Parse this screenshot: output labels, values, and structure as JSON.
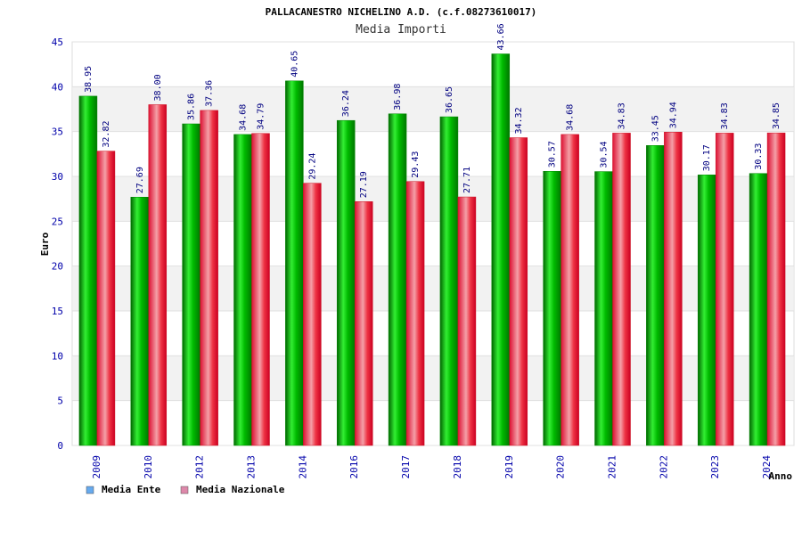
{
  "chart_data": {
    "type": "bar",
    "title": "PALLACANESTRO NICHELINO A.D. (c.f.08273610017)",
    "subtitle": "Media Importi",
    "xlabel": "Anno",
    "ylabel": "Euro",
    "ylim": [
      0,
      45
    ],
    "yticks": [
      0,
      5,
      10,
      15,
      20,
      25,
      30,
      35,
      40,
      45
    ],
    "grid": true,
    "legend_position": "bottom-left",
    "categories": [
      "2009",
      "2010",
      "2012",
      "2013",
      "2014",
      "2016",
      "2017",
      "2018",
      "2019",
      "2020",
      "2021",
      "2022",
      "2023",
      "2024"
    ],
    "series": [
      {
        "name": "Media Ente",
        "legend_color": "#66aaee",
        "bar_color": "#00aa00",
        "values": [
          38.95,
          27.69,
          35.86,
          34.68,
          40.65,
          36.24,
          36.98,
          36.65,
          43.66,
          30.57,
          30.54,
          33.45,
          30.17,
          30.33
        ],
        "labels": [
          "38.95",
          "27.69",
          "35.86",
          "34.68",
          "40.65",
          "36.24",
          "36.98",
          "36.65",
          "43.66",
          "30.57",
          "30.54",
          "33.45",
          "30.17",
          "30.33"
        ]
      },
      {
        "name": "Media Nazionale",
        "legend_color": "#dd88aa",
        "bar_color": "#dd1122",
        "values": [
          32.82,
          38.0,
          37.36,
          34.79,
          29.24,
          27.19,
          29.43,
          27.71,
          34.32,
          34.68,
          34.83,
          34.94,
          34.83,
          34.85
        ],
        "labels": [
          "32.82",
          "38.00",
          "37.36",
          "34.79",
          "29.24",
          "27.19",
          "29.43",
          "27.71",
          "34.32",
          "34.68",
          "34.83",
          "34.94",
          "34.83",
          "34.85"
        ]
      }
    ]
  }
}
